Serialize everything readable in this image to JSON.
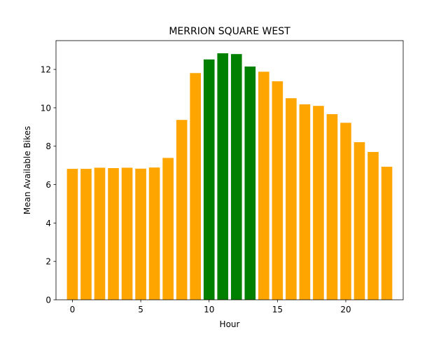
{
  "chart_data": {
    "type": "bar",
    "title": "MERRION SQUARE WEST",
    "xlabel": "Hour",
    "ylabel": "Mean Available Bikes",
    "xlim": [
      -1.2,
      24.2
    ],
    "ylim": [
      0,
      13.5
    ],
    "xticks": [
      0,
      5,
      10,
      15,
      20
    ],
    "yticks": [
      0,
      2,
      4,
      6,
      8,
      10,
      12
    ],
    "grid": false,
    "colors": {
      "default": "#ffa500",
      "highlight": "#008000"
    },
    "bars": [
      {
        "x": 0,
        "value": 6.82,
        "color": "#ffa500"
      },
      {
        "x": 1,
        "value": 6.82,
        "color": "#ffa500"
      },
      {
        "x": 2,
        "value": 6.88,
        "color": "#ffa500"
      },
      {
        "x": 3,
        "value": 6.86,
        "color": "#ffa500"
      },
      {
        "x": 4,
        "value": 6.88,
        "color": "#ffa500"
      },
      {
        "x": 5,
        "value": 6.83,
        "color": "#ffa500"
      },
      {
        "x": 6,
        "value": 6.89,
        "color": "#ffa500"
      },
      {
        "x": 7,
        "value": 7.39,
        "color": "#ffa500"
      },
      {
        "x": 8,
        "value": 9.37,
        "color": "#ffa500"
      },
      {
        "x": 9,
        "value": 11.81,
        "color": "#ffa500"
      },
      {
        "x": 10,
        "value": 12.52,
        "color": "#008000"
      },
      {
        "x": 11,
        "value": 12.84,
        "color": "#008000"
      },
      {
        "x": 12,
        "value": 12.8,
        "color": "#008000"
      },
      {
        "x": 13,
        "value": 12.15,
        "color": "#008000"
      },
      {
        "x": 14,
        "value": 11.88,
        "color": "#ffa500"
      },
      {
        "x": 15,
        "value": 11.38,
        "color": "#ffa500"
      },
      {
        "x": 16,
        "value": 10.5,
        "color": "#ffa500"
      },
      {
        "x": 17,
        "value": 10.18,
        "color": "#ffa500"
      },
      {
        "x": 18,
        "value": 10.1,
        "color": "#ffa500"
      },
      {
        "x": 19,
        "value": 9.67,
        "color": "#ffa500"
      },
      {
        "x": 20,
        "value": 9.22,
        "color": "#ffa500"
      },
      {
        "x": 21,
        "value": 8.21,
        "color": "#ffa500"
      },
      {
        "x": 22,
        "value": 7.7,
        "color": "#ffa500"
      },
      {
        "x": 23,
        "value": 6.93,
        "color": "#ffa500"
      }
    ]
  }
}
